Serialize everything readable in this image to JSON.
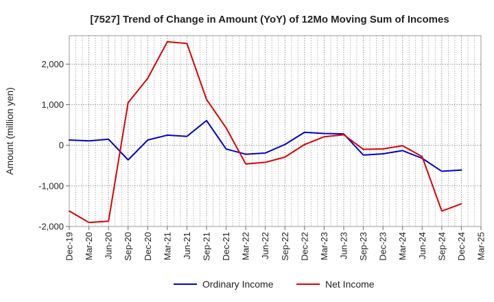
{
  "chart_data": {
    "type": "line",
    "title": "[7527]  Trend of Change in Amount (YoY) of 12Mo Moving Sum of Incomes",
    "xlabel": "",
    "ylabel": "Amount (million yen)",
    "ylim": [
      -2000,
      2700
    ],
    "yticks": [
      {
        "value": -2000,
        "label": "-2,000"
      },
      {
        "value": -1000,
        "label": "-1,000"
      },
      {
        "value": 0,
        "label": "0"
      },
      {
        "value": 1000,
        "label": "1,000"
      },
      {
        "value": 2000,
        "label": "2,000"
      }
    ],
    "categories": [
      "Dec-19",
      "Mar-20",
      "Jun-20",
      "Sep-20",
      "Dec-20",
      "Mar-21",
      "Jun-21",
      "Sep-21",
      "Dec-21",
      "Mar-22",
      "Jun-22",
      "Sep-22",
      "Dec-22",
      "Mar-23",
      "Jun-23",
      "Sep-23",
      "Dec-23",
      "Mar-24",
      "Jun-24",
      "Sep-24",
      "Dec-24",
      "Mar-25"
    ],
    "grid": true,
    "legend_position": "bottom-center",
    "series": [
      {
        "name": "Ordinary Income",
        "color": "#0000cc",
        "values": [
          130,
          110,
          150,
          -360,
          130,
          250,
          220,
          610,
          -90,
          -220,
          -190,
          20,
          320,
          290,
          280,
          -240,
          -210,
          -130,
          -320,
          -640,
          -610,
          null
        ]
      },
      {
        "name": "Net Income",
        "color": "#dd0000",
        "values": [
          -1620,
          -1900,
          -1870,
          1050,
          1650,
          2550,
          2510,
          1130,
          430,
          -460,
          -420,
          -290,
          20,
          210,
          260,
          -100,
          -90,
          -10,
          -280,
          -1620,
          -1440,
          null
        ]
      }
    ]
  }
}
